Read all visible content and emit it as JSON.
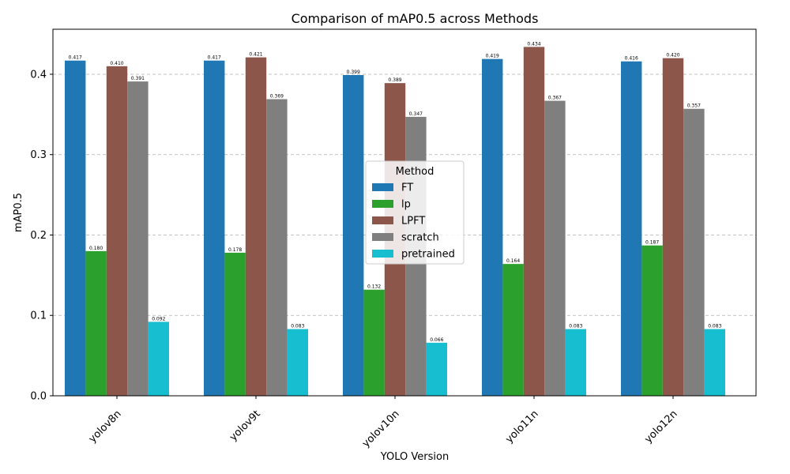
{
  "chart_data": {
    "type": "bar",
    "title": "Comparison of mAP0.5 across Methods",
    "xlabel": "YOLO Version",
    "ylabel": "mAP0.5",
    "categories": [
      "yolov8n",
      "yolov9t",
      "yolov10n",
      "yolo11n",
      "yolo12n"
    ],
    "series": [
      {
        "name": "FT",
        "color": "#1f77b4",
        "values": [
          0.417,
          0.417,
          0.399,
          0.419,
          0.416
        ]
      },
      {
        "name": "lp",
        "color": "#2ca02c",
        "values": [
          0.18,
          0.178,
          0.132,
          0.164,
          0.187
        ]
      },
      {
        "name": "LPFT",
        "color": "#8c564b",
        "values": [
          0.41,
          0.421,
          0.389,
          0.434,
          0.42
        ]
      },
      {
        "name": "scratch",
        "color": "#7f7f7f",
        "values": [
          0.391,
          0.369,
          0.347,
          0.367,
          0.357
        ]
      },
      {
        "name": "pretrained",
        "color": "#17becf",
        "values": [
          0.092,
          0.083,
          0.066,
          0.083,
          0.083
        ]
      }
    ],
    "ylim": [
      0,
      0.456
    ],
    "yticks": [
      "0.0",
      "0.1",
      "0.2",
      "0.3",
      "0.4"
    ],
    "grid": "y-dashed",
    "legend": {
      "title": "Method",
      "placement": "center"
    }
  }
}
